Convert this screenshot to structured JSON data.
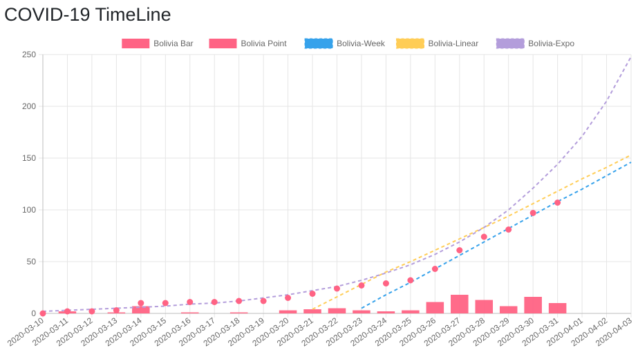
{
  "page": {
    "title": "COVID-19 TimeLine"
  },
  "colors": {
    "bar": "#ff6384",
    "point": "#ff6384",
    "week": "#36a2eb",
    "linear": "#ffcd56",
    "expo": "#b39ddb",
    "grid": "#e5e5e5",
    "axis_text": "#666666"
  },
  "chart_data": {
    "type": "bar",
    "title": "",
    "xlabel": "",
    "ylabel": "",
    "ylim": [
      0,
      250
    ],
    "y_ticks": [
      0,
      50,
      100,
      150,
      200,
      250
    ],
    "grid": true,
    "legend_position": "top",
    "categories": [
      "2020-03-10",
      "2020-03-11",
      "2020-03-12",
      "2020-03-13",
      "2020-03-14",
      "2020-03-15",
      "2020-03-16",
      "2020-03-17",
      "2020-03-18",
      "2020-03-19",
      "2020-03-20",
      "2020-03-21",
      "2020-03-22",
      "2020-03-23",
      "2020-03-24",
      "2020-03-25",
      "2020-03-26",
      "2020-03-27",
      "2020-03-28",
      "2020-03-29",
      "2020-03-30",
      "2020-03-31",
      "2020-04-01",
      "2020-04-02",
      "2020-04-03"
    ],
    "series": [
      {
        "name": "Bolivia Bar",
        "type": "bar",
        "values": [
          0,
          2,
          0,
          1,
          7,
          0,
          1,
          0,
          1,
          0,
          3,
          4,
          5,
          3,
          2,
          3,
          11,
          18,
          13,
          7,
          16,
          10,
          null,
          null,
          null
        ]
      },
      {
        "name": "Bolivia Point",
        "type": "scatter",
        "values": [
          0,
          2,
          2,
          3,
          10,
          10,
          11,
          11,
          12,
          12,
          15,
          19,
          24,
          27,
          29,
          32,
          43,
          61,
          74,
          81,
          97,
          107,
          null,
          null,
          null
        ]
      },
      {
        "name": "Bolivia-Week",
        "type": "line",
        "dashed": true,
        "values": [
          null,
          null,
          null,
          null,
          null,
          null,
          null,
          null,
          null,
          null,
          null,
          null,
          null,
          5,
          18,
          30,
          43,
          56,
          69,
          82,
          95,
          108,
          120,
          133,
          146
        ]
      },
      {
        "name": "Bolivia-Linear",
        "type": "line",
        "dashed": true,
        "values": [
          null,
          null,
          null,
          null,
          null,
          null,
          null,
          null,
          null,
          null,
          null,
          4,
          16,
          28,
          40,
          50,
          61,
          72,
          83,
          94,
          106,
          118,
          130,
          141,
          153
        ]
      },
      {
        "name": "Bolivia-Expo",
        "type": "line",
        "dashed": true,
        "values": [
          2,
          3,
          4,
          5,
          6,
          7,
          9,
          10,
          12,
          15,
          18,
          22,
          26,
          32,
          39,
          47,
          57,
          69,
          83,
          100,
          121,
          144,
          171,
          205,
          248
        ]
      }
    ]
  }
}
